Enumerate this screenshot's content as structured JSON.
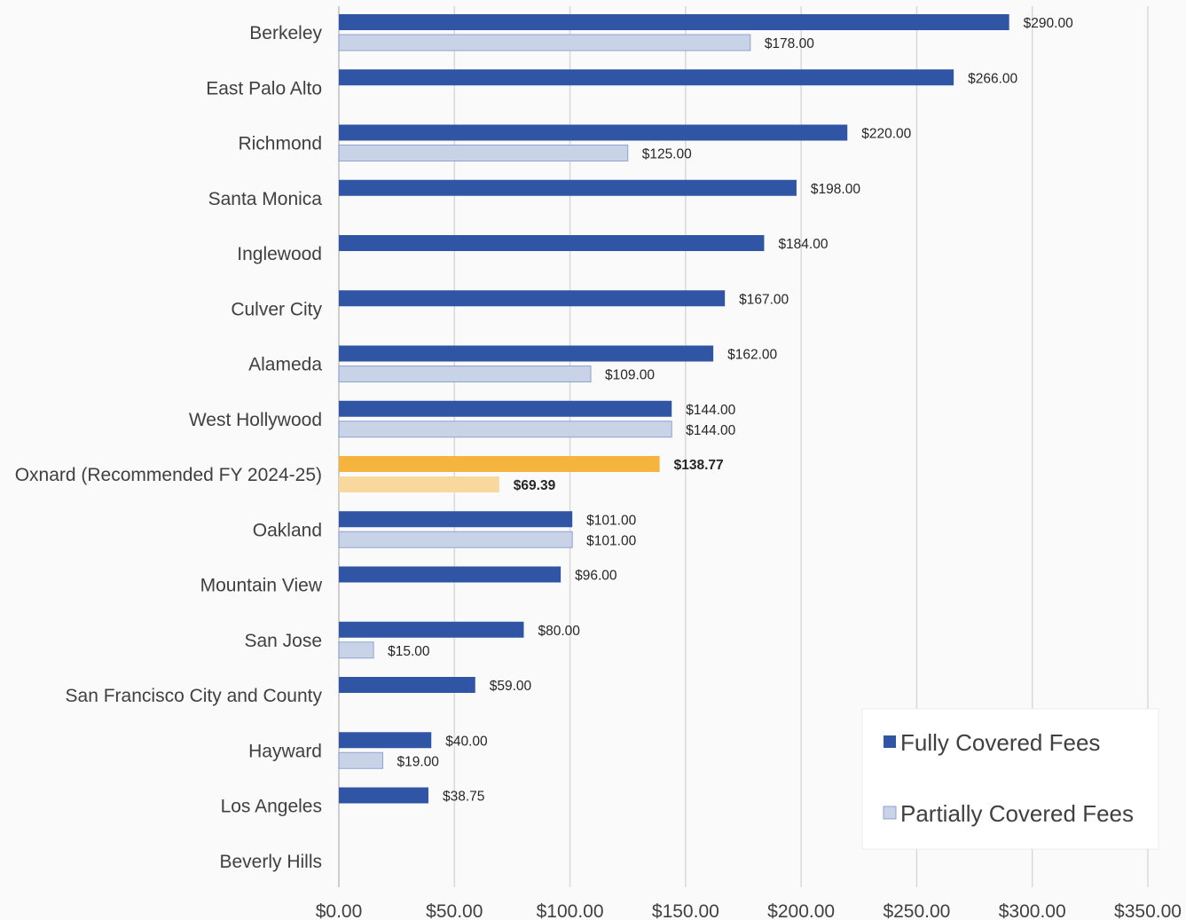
{
  "chart_data": {
    "type": "bar",
    "orientation": "horizontal",
    "categories": [
      "Berkeley",
      "East Palo Alto",
      "Richmond",
      "Santa Monica",
      "Inglewood",
      "Culver City",
      "Alameda",
      "West Hollywood",
      "Oxnard (Recommended FY 2024-25)",
      "Oakland",
      "Mountain View",
      "San Jose",
      "San Francisco City and County",
      "Hayward",
      "Los Angeles",
      "Beverly Hills"
    ],
    "series": [
      {
        "name": "Fully Covered Fees",
        "values": [
          290,
          266,
          220,
          198,
          184,
          167,
          162,
          144,
          138.77,
          101,
          96,
          80,
          59,
          40,
          38.75,
          null
        ],
        "labels": [
          "$290.00",
          "$266.00",
          "$220.00",
          "$198.00",
          "$184.00",
          "$167.00",
          "$162.00",
          "$144.00",
          "$138.77",
          "$101.00",
          "$96.00",
          "$80.00",
          "$59.00",
          "$40.00",
          "$38.75",
          ""
        ]
      },
      {
        "name": "Partially Covered Fees",
        "values": [
          178,
          null,
          125,
          null,
          null,
          null,
          109,
          144,
          69.39,
          101,
          null,
          15,
          null,
          19,
          null,
          null
        ],
        "labels": [
          "$178.00",
          "",
          "$125.00",
          "",
          "",
          "",
          "$109.00",
          "$144.00",
          "$69.39",
          "$101.00",
          "",
          "$15.00",
          "",
          "$19.00",
          "",
          ""
        ]
      }
    ],
    "highlight_category": "Oxnard (Recommended FY 2024-25)",
    "xlim": [
      0,
      350
    ],
    "x_ticks": [
      0,
      50,
      100,
      150,
      200,
      250,
      300,
      350
    ],
    "x_tick_labels": [
      "$0.00",
      "$50.00",
      "$100.00",
      "$150.00",
      "$200.00",
      "$250.00",
      "$300.00",
      "$350.00"
    ],
    "grid": "vertical",
    "legend_position": "bottom-right",
    "colors": {
      "fully": "#2f55a4",
      "partially": "#c9d3e8",
      "partially_border": "#8fa3cf",
      "highlight_fully": "#f4b43d",
      "highlight_partially": "#f8d89c",
      "grid": "#d9d9d9",
      "background": "#fafafa"
    },
    "title": "",
    "xlabel": "",
    "ylabel": ""
  }
}
